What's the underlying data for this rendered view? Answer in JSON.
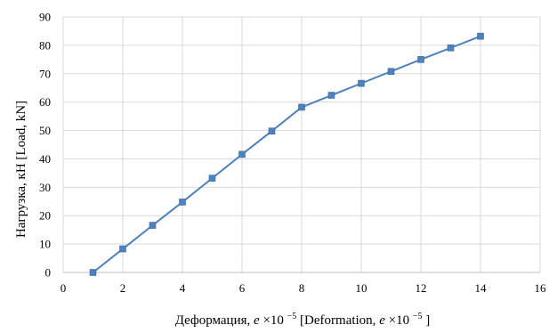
{
  "chart_data": {
    "type": "line",
    "title": "",
    "xlabel": {
      "prefix": "Деформация, ",
      "var1": "e",
      "mid1": "×10",
      "sup1": "−5",
      "mid2": " [Deformation, ",
      "var2": "e",
      "mid3": "×10",
      "sup2": "−5",
      "suffix": "]"
    },
    "ylabel": "Нагрузка, кН [Load, kN]",
    "xlim": [
      0,
      16
    ],
    "ylim": [
      0,
      90
    ],
    "xticks": [
      "0",
      "2",
      "4",
      "6",
      "8",
      "10",
      "12",
      "14",
      "16"
    ],
    "yticks": [
      "0",
      "10",
      "20",
      "30",
      "40",
      "50",
      "60",
      "70",
      "80",
      "90"
    ],
    "grid": true,
    "legend": "none",
    "series_color": "#4f81bd",
    "marker_color": "#4f81bd",
    "grid_color": "#d9d9d9",
    "series": [
      {
        "x": [
          1,
          2,
          3,
          4,
          5,
          6,
          7,
          8,
          9,
          10,
          11,
          12,
          13,
          14
        ],
        "values": [
          0,
          8.3,
          16.6,
          24.8,
          33.2,
          41.6,
          49.8,
          58.2,
          62.4,
          66.6,
          70.8,
          75,
          79.1,
          83.2
        ]
      }
    ]
  }
}
